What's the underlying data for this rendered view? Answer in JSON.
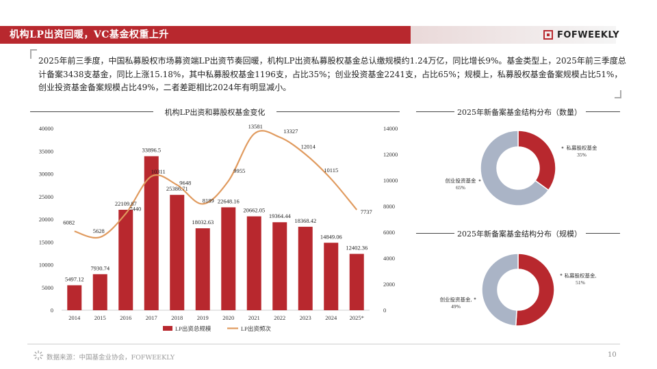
{
  "header": {
    "title": "机构LP出资回暖，VC基金权重上升",
    "logo_text": "FOFWEEKLY",
    "accent_color": "#b8282e"
  },
  "summary": {
    "text": "2025年前三季度，中国私募股权市场募资端LP出资节奏回暖，机构LP出资私募股权基金总认缴规模约1.24万亿，同比增长9%。基金类型上，2025年前三季度总计备案3438支基金，同比上涨15.18%，其中私募股权基金1196支，占比35%；创业投资基金2241支，占比65%；规模上，私募股权基金备案规模占比51%，创业投资基金备案规模占比49%，二者差距相比2024年有明显减小。"
  },
  "chart_data": [
    {
      "type": "bar+line",
      "title": "机构LP出资和募股权基金变化",
      "categories": [
        "2014",
        "2015",
        "2016",
        "2017",
        "2018",
        "2019",
        "2020",
        "2021",
        "2022",
        "2023",
        "2024",
        "2025*"
      ],
      "series": [
        {
          "name": "LP出资总规模",
          "type": "bar",
          "axis": "left",
          "color": "#b8282e",
          "values": [
            5497.12,
            7930.74,
            22109.87,
            33896.5,
            25386.71,
            18032.63,
            22648.16,
            20662.05,
            19364.44,
            18368.42,
            14849.06,
            12402.36
          ]
        },
        {
          "name": "LP出资频次",
          "type": "line",
          "axis": "right",
          "color": "#e09a5e",
          "values": [
            6082,
            5628,
            7440,
            10311,
            9648,
            8189,
            9955,
            13581,
            13327,
            12014,
            10115,
            7737
          ]
        }
      ],
      "left_axis": {
        "min": 0,
        "max": 40000,
        "ticks": [
          "0",
          "5000",
          "10000",
          "15000",
          "20000",
          "25000",
          "30000",
          "35000",
          "40000"
        ]
      },
      "right_axis": {
        "min": 0,
        "max": 14000,
        "ticks": [
          "0",
          "2000",
          "4000",
          "6000",
          "8000",
          "10000",
          "12000",
          "14000"
        ]
      },
      "legend_position": "bottom"
    },
    {
      "type": "pie",
      "title": "2025年新备案基金结构分布（数量）",
      "slices": [
        {
          "label": "私募股权基金",
          "pct_label": "35%",
          "value": 35,
          "color": "#b8282e"
        },
        {
          "label": "创业投资基金",
          "pct_label": "65%",
          "value": 65,
          "color": "#aab4c6"
        }
      ]
    },
    {
      "type": "pie",
      "title": "2025年新备案基金结构分布（规模）",
      "slices": [
        {
          "label": "私募股权基金,",
          "pct_label": "51%",
          "value": 51,
          "color": "#b8282e"
        },
        {
          "label": "创业投资基金,",
          "pct_label": "49%",
          "value": 49,
          "color": "#aab4c6"
        }
      ]
    }
  ],
  "footer": {
    "source": "数据来源：中国基金业协会，FOFWEEKLY",
    "page": "10"
  }
}
